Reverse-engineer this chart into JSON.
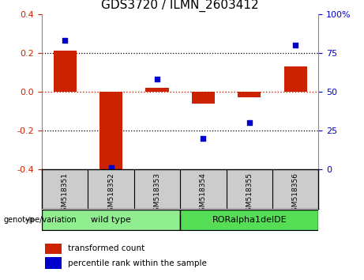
{
  "title": "GDS3720 / ILMN_2603412",
  "samples": [
    "GSM518351",
    "GSM518352",
    "GSM518353",
    "GSM518354",
    "GSM518355",
    "GSM518356"
  ],
  "bar_values": [
    0.21,
    -0.42,
    0.02,
    -0.06,
    -0.03,
    0.13
  ],
  "scatter_values": [
    83,
    1,
    58,
    20,
    30,
    80
  ],
  "bar_color": "#cc2200",
  "scatter_color": "#0000cc",
  "ylim_left": [
    -0.4,
    0.4
  ],
  "ylim_right": [
    0,
    100
  ],
  "yticks_left": [
    -0.4,
    -0.2,
    0.0,
    0.2,
    0.4
  ],
  "yticks_right": [
    0,
    25,
    50,
    75,
    100
  ],
  "dotted_lines_black": [
    -0.2,
    0.2
  ],
  "dotted_line_red": 0.0,
  "groups": [
    {
      "label": "wild type",
      "indices": [
        0,
        1,
        2
      ],
      "color": "#90ee90"
    },
    {
      "label": "RORalpha1delDE",
      "indices": [
        3,
        4,
        5
      ],
      "color": "#55dd55"
    }
  ],
  "genotype_label": "genotype/variation",
  "legend_items": [
    {
      "label": "transformed count",
      "color": "#cc2200"
    },
    {
      "label": "percentile rank within the sample",
      "color": "#0000cc"
    }
  ],
  "tick_fontsize": 8,
  "title_fontsize": 11,
  "bar_width": 0.5,
  "sample_box_color": "#cccccc",
  "left_axis_color": "#cc2200",
  "right_axis_color": "#0000cc"
}
